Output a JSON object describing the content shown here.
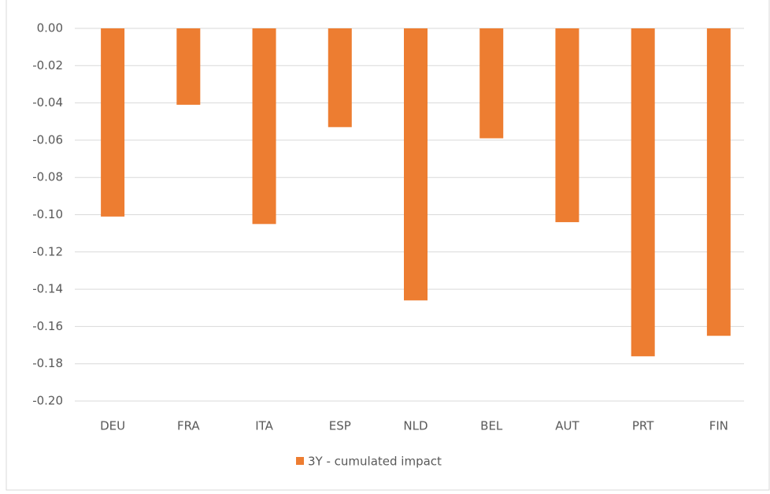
{
  "chart_data": {
    "type": "bar",
    "categories": [
      "DEU",
      "FRA",
      "ITA",
      "ESP",
      "NLD",
      "BEL",
      "AUT",
      "PRT",
      "FIN"
    ],
    "series": [
      {
        "name": "3Y - cumulated impact",
        "color": "#ed7d31",
        "values": [
          -0.101,
          -0.041,
          -0.105,
          -0.053,
          -0.146,
          -0.059,
          -0.104,
          -0.176,
          -0.165
        ]
      }
    ],
    "ylim": [
      -0.2,
      0
    ],
    "yticks": [
      {
        "value": 0,
        "label": "0.00"
      },
      {
        "value": -0.02,
        "label": "-0.02"
      },
      {
        "value": -0.04,
        "label": "-0.04"
      },
      {
        "value": -0.06,
        "label": "-0.06"
      },
      {
        "value": -0.08,
        "label": "-0.08"
      },
      {
        "value": -0.1,
        "label": "-0.10"
      },
      {
        "value": -0.12,
        "label": "-0.12"
      },
      {
        "value": -0.14,
        "label": "-0.14"
      },
      {
        "value": -0.16,
        "label": "-0.16"
      },
      {
        "value": -0.18,
        "label": "-0.18"
      },
      {
        "value": -0.2,
        "label": "-0.20"
      }
    ],
    "grid": true,
    "legend": "bottom"
  }
}
